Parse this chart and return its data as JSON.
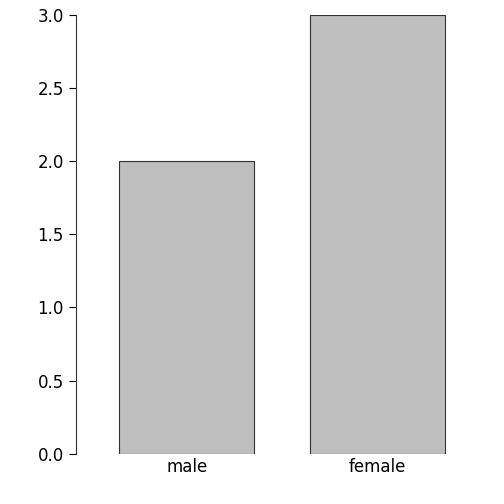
{
  "categories": [
    "male",
    "female"
  ],
  "values": [
    2,
    3
  ],
  "bar_color": "#bebebe",
  "bar_edgecolor": "#333333",
  "bar_linewidth": 0.8,
  "ylim": [
    0,
    3.0
  ],
  "yticks": [
    0.0,
    0.5,
    1.0,
    1.5,
    2.0,
    2.5,
    3.0
  ],
  "background_color": "#ffffff",
  "tick_fontsize": 12,
  "label_fontsize": 12,
  "x_positions": [
    0.7,
    1.9
  ],
  "bar_width": 0.85,
  "xlim": [
    0.0,
    2.6
  ]
}
